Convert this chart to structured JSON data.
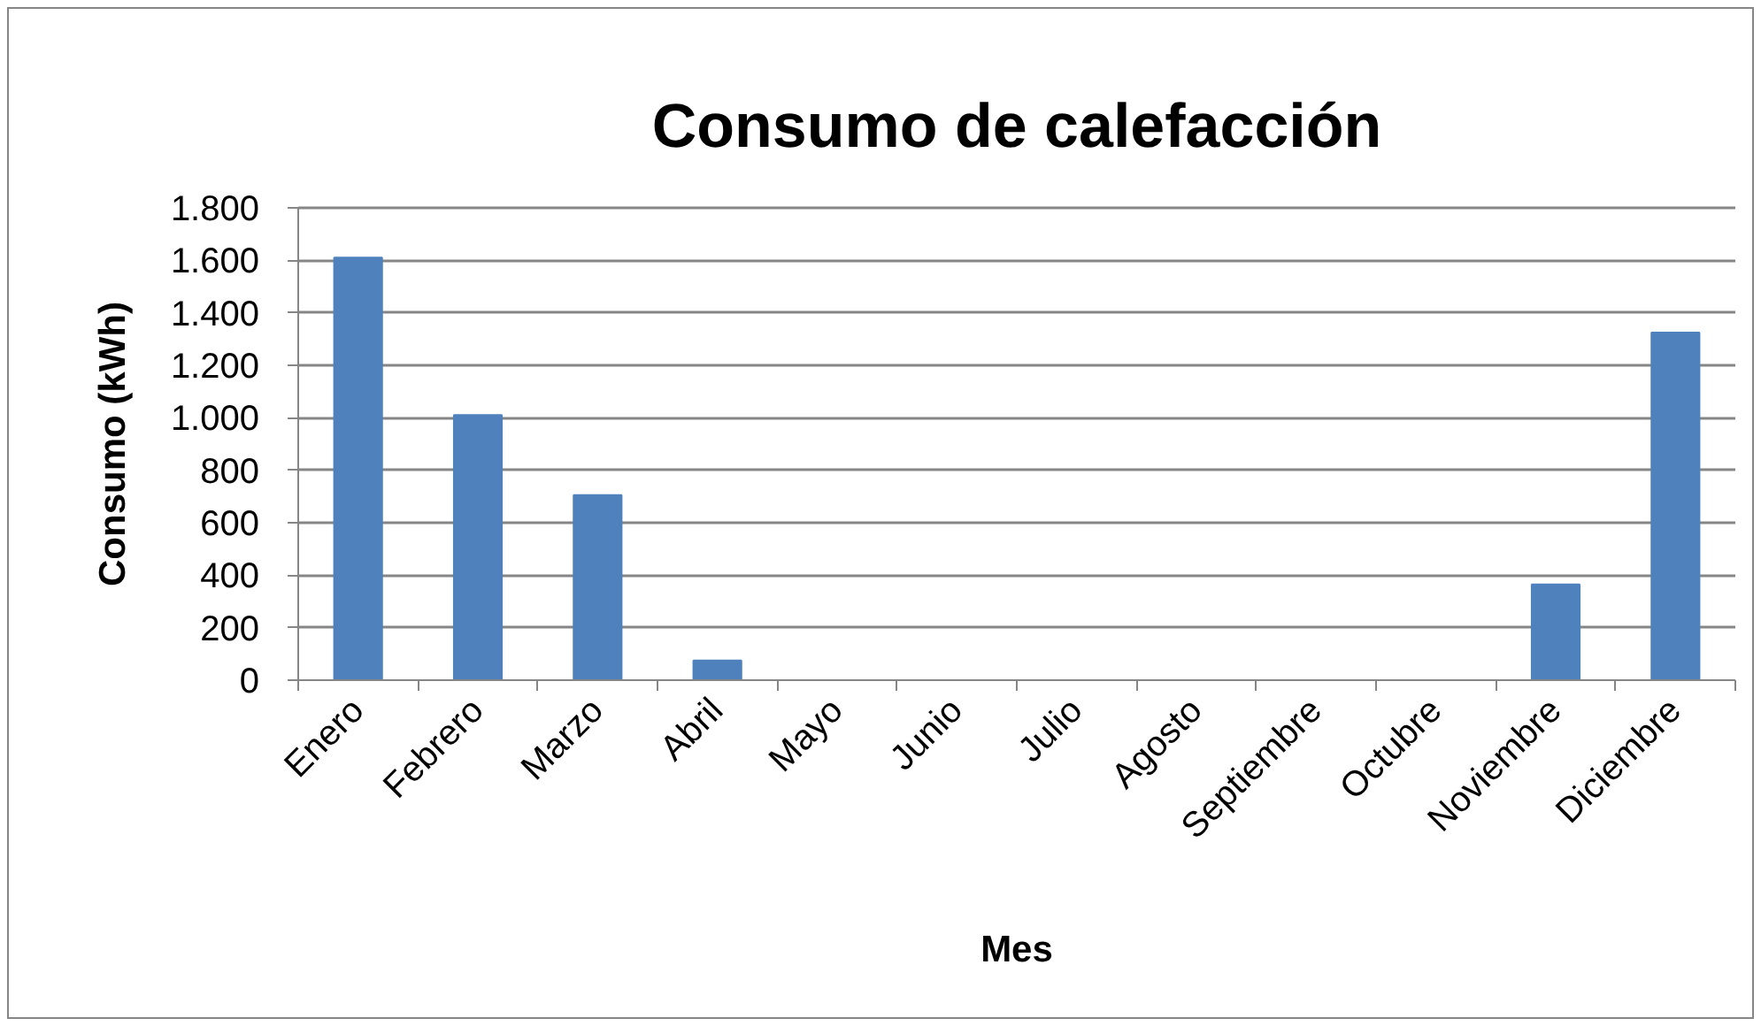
{
  "chart_data": {
    "type": "bar",
    "title": "Consumo de calefacción",
    "xlabel": "Mes",
    "ylabel": "Consumo (kWh)",
    "categories": [
      "Enero",
      "Febrero",
      "Marzo",
      "Abril",
      "Mayo",
      "Junio",
      "Julio",
      "Agosto",
      "Septiembre",
      "Octubre",
      "Noviembre",
      "Diciembre"
    ],
    "values": [
      1610,
      1010,
      705,
      75,
      0,
      0,
      0,
      0,
      0,
      0,
      365,
      1325
    ],
    "color": "#4f81bd",
    "ylim": [
      0,
      1800
    ],
    "yticks": [
      0,
      200,
      400,
      600,
      800,
      {
        "value": 1000,
        "label": "1.000"
      },
      {
        "value": 1200,
        "label": "1.200"
      },
      {
        "value": 1400,
        "label": "1.400"
      },
      {
        "value": 1600,
        "label": "1.600"
      },
      {
        "value": 1800,
        "label": "1.800"
      }
    ],
    "grid": "y"
  }
}
